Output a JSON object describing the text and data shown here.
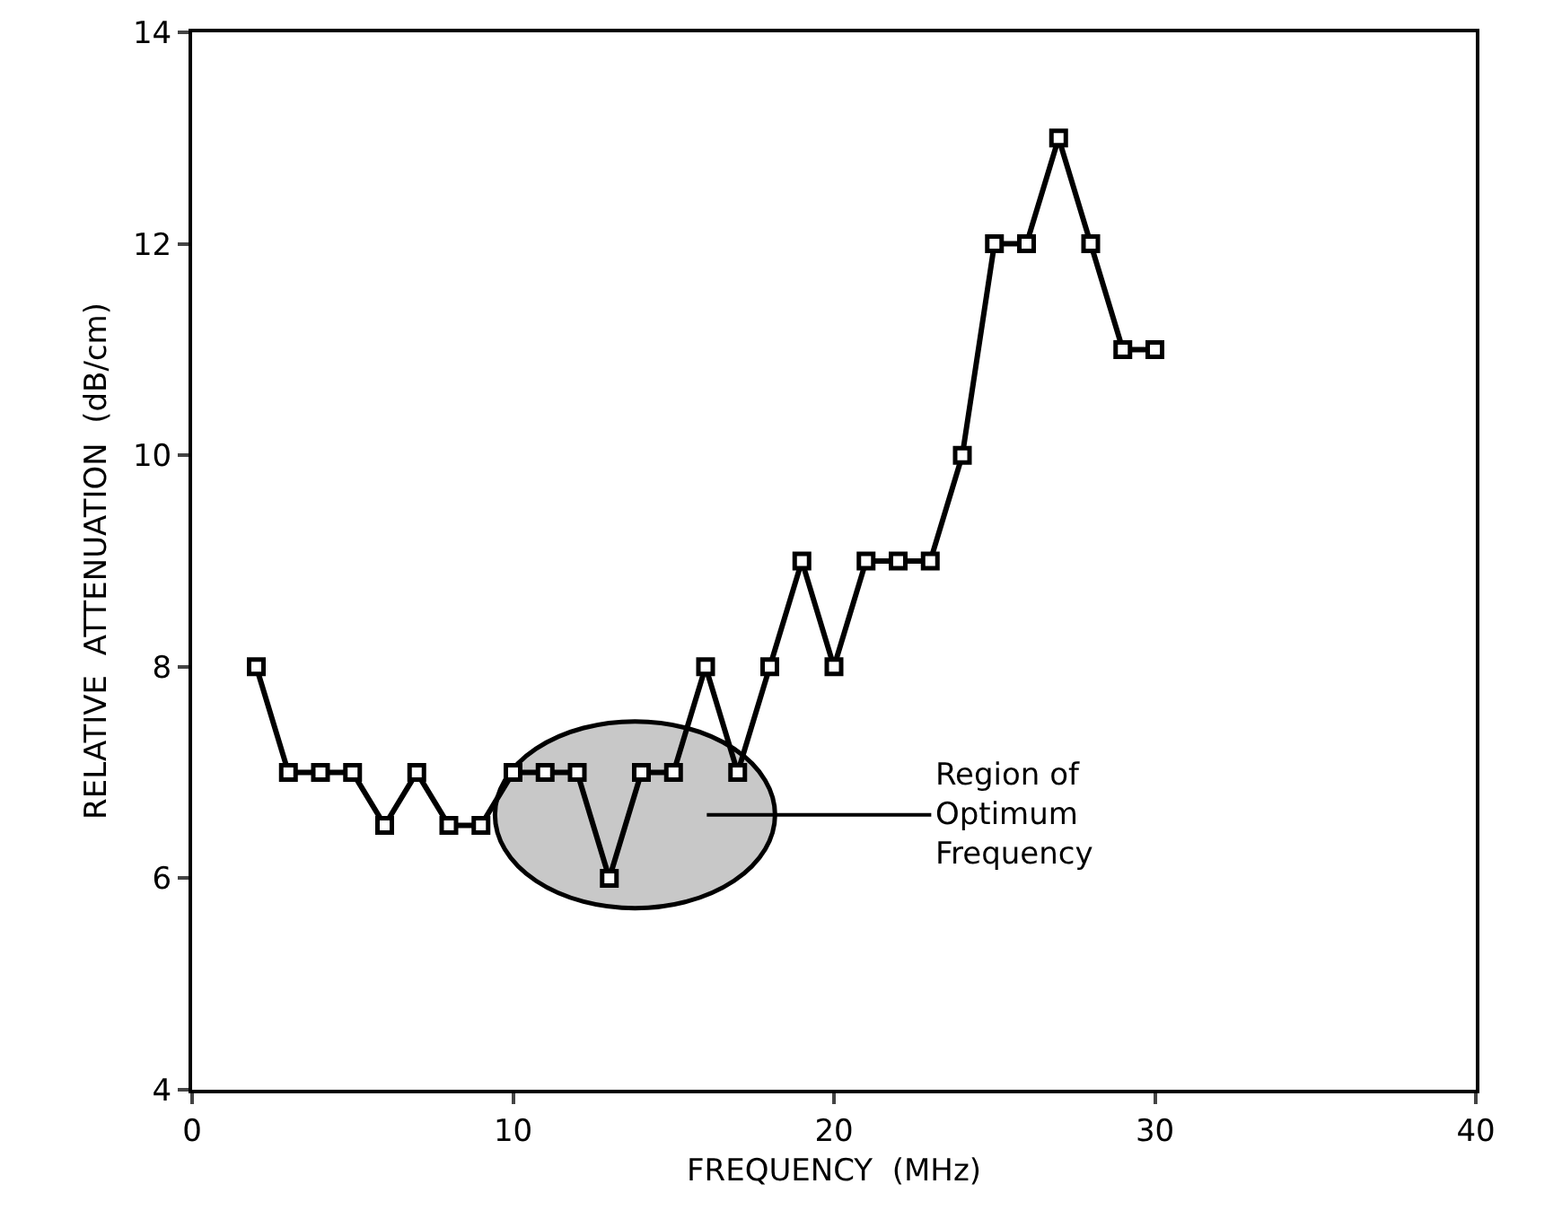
{
  "chart_data": {
    "type": "line",
    "xlabel": "FREQUENCY  (MHz)",
    "ylabel": "RELATIVE  ATTENUATION  (dB/cm)",
    "x": [
      2,
      3,
      4,
      5,
      6,
      7,
      8,
      9,
      10,
      11,
      12,
      13,
      14,
      15,
      16,
      17,
      18,
      19,
      20,
      21,
      22,
      23,
      24,
      25,
      26,
      27,
      28,
      29,
      30
    ],
    "series": [
      {
        "color": "#000000",
        "values": [
          8,
          7,
          7,
          7,
          6.5,
          7,
          6.5,
          6.5,
          7,
          7,
          7,
          6,
          7,
          7,
          8,
          7,
          8,
          9,
          8,
          9,
          9,
          9,
          10,
          12,
          12,
          13,
          12,
          11,
          11
        ]
      }
    ],
    "xlim": [
      0,
      40
    ],
    "xticks": [
      0,
      10,
      20,
      30,
      40
    ],
    "ylim": [
      4,
      14
    ],
    "yticks": [
      4,
      6,
      8,
      10,
      12,
      14
    ],
    "grid": false,
    "marker": "square",
    "line_style": "solid",
    "annotations": [
      {
        "text": "Region of\nOptimum\nFrequency",
        "x": 13.8,
        "y": 6.6
      }
    ]
  }
}
